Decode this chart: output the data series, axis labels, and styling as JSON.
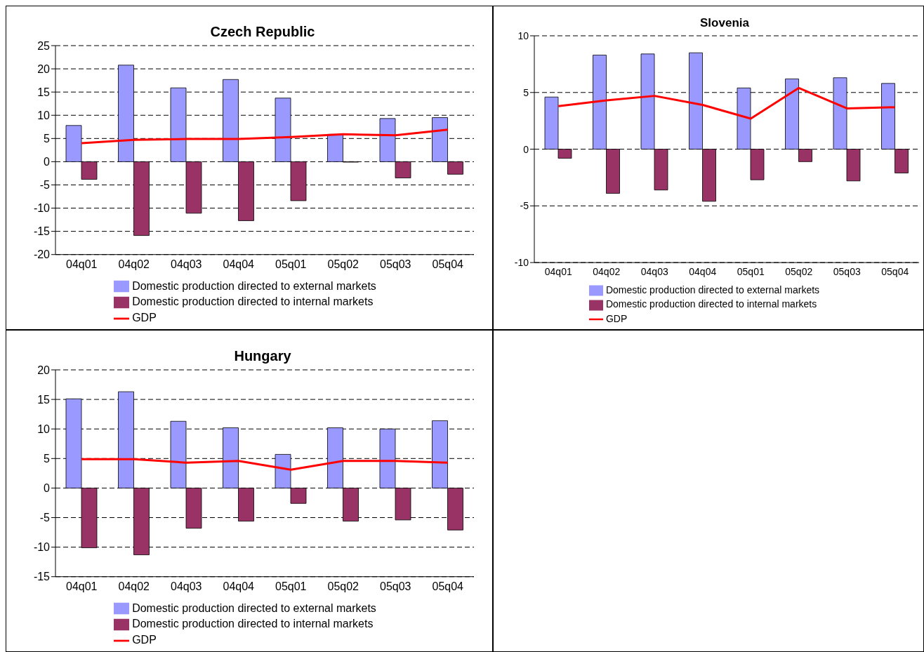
{
  "chart_data": [
    {
      "type": "bar",
      "title": "Czech Republic",
      "categories": [
        "04q01",
        "04q02",
        "04q03",
        "04q04",
        "05q01",
        "05q02",
        "05q03",
        "05q04"
      ],
      "series": [
        {
          "name": "Domestic production directed to external markets",
          "color": "#9999ff",
          "values": [
            7.8,
            20.8,
            15.9,
            17.7,
            13.7,
            5.9,
            9.3,
            9.5
          ]
        },
        {
          "name": "Domestic production directed to internal markets",
          "color": "#993366",
          "values": [
            -3.8,
            -15.9,
            -11.1,
            -12.7,
            -8.4,
            -0.1,
            -3.5,
            -2.7
          ]
        },
        {
          "name": "GDP",
          "type": "line",
          "color": "#ff0000",
          "values": [
            4.0,
            4.7,
            4.9,
            4.9,
            5.3,
            5.9,
            5.7,
            6.9
          ]
        }
      ],
      "ylim": [
        -20,
        25
      ],
      "yticks": [
        -20,
        -15,
        -10,
        -5,
        0,
        5,
        10,
        15,
        20,
        25
      ],
      "grid": "y",
      "legend": "bottom",
      "marker": "none"
    },
    {
      "type": "bar",
      "title": "Slovenia",
      "categories": [
        "04q01",
        "04q02",
        "04q03",
        "04q04",
        "05q01",
        "05q02",
        "05q03",
        "05q04"
      ],
      "series": [
        {
          "name": "Domestic production directed to external markets",
          "color": "#9999ff",
          "values": [
            4.6,
            8.3,
            8.4,
            8.5,
            5.4,
            6.2,
            6.3,
            5.8
          ]
        },
        {
          "name": "Domestic production directed to internal markets",
          "color": "#993366",
          "values": [
            -0.8,
            -3.9,
            -3.6,
            -4.6,
            -2.7,
            -1.1,
            -2.8,
            -2.1
          ]
        },
        {
          "name": "GDP",
          "type": "line",
          "color": "#ff0000",
          "values": [
            3.8,
            4.3,
            4.7,
            3.9,
            2.7,
            5.4,
            3.6,
            3.7
          ]
        }
      ],
      "ylim": [
        -10,
        10
      ],
      "yticks": [
        -10,
        -5,
        0,
        5,
        10
      ],
      "grid": "y",
      "legend": "bottom",
      "marker": "none"
    },
    {
      "type": "bar",
      "title": "Hungary",
      "categories": [
        "04q01",
        "04q02",
        "04q03",
        "04q04",
        "05q01",
        "05q02",
        "05q03",
        "05q04"
      ],
      "series": [
        {
          "name": "Domestic production directed to external markets",
          "color": "#9999ff",
          "values": [
            15.1,
            16.3,
            11.3,
            10.2,
            5.7,
            10.2,
            10.0,
            11.4
          ]
        },
        {
          "name": "Domestic production directed to internal markets",
          "color": "#993366",
          "values": [
            -10.1,
            -11.3,
            -6.8,
            -5.6,
            -2.6,
            -5.6,
            -5.4,
            -7.1
          ]
        },
        {
          "name": "GDP",
          "type": "line",
          "color": "#ff0000",
          "values": [
            4.9,
            4.9,
            4.3,
            4.6,
            3.1,
            4.6,
            4.6,
            4.3
          ]
        }
      ],
      "ylim": [
        -15,
        20
      ],
      "yticks": [
        -15,
        -10,
        -5,
        0,
        5,
        10,
        15,
        20
      ],
      "grid": "y",
      "legend": "bottom",
      "marker": "none"
    }
  ]
}
